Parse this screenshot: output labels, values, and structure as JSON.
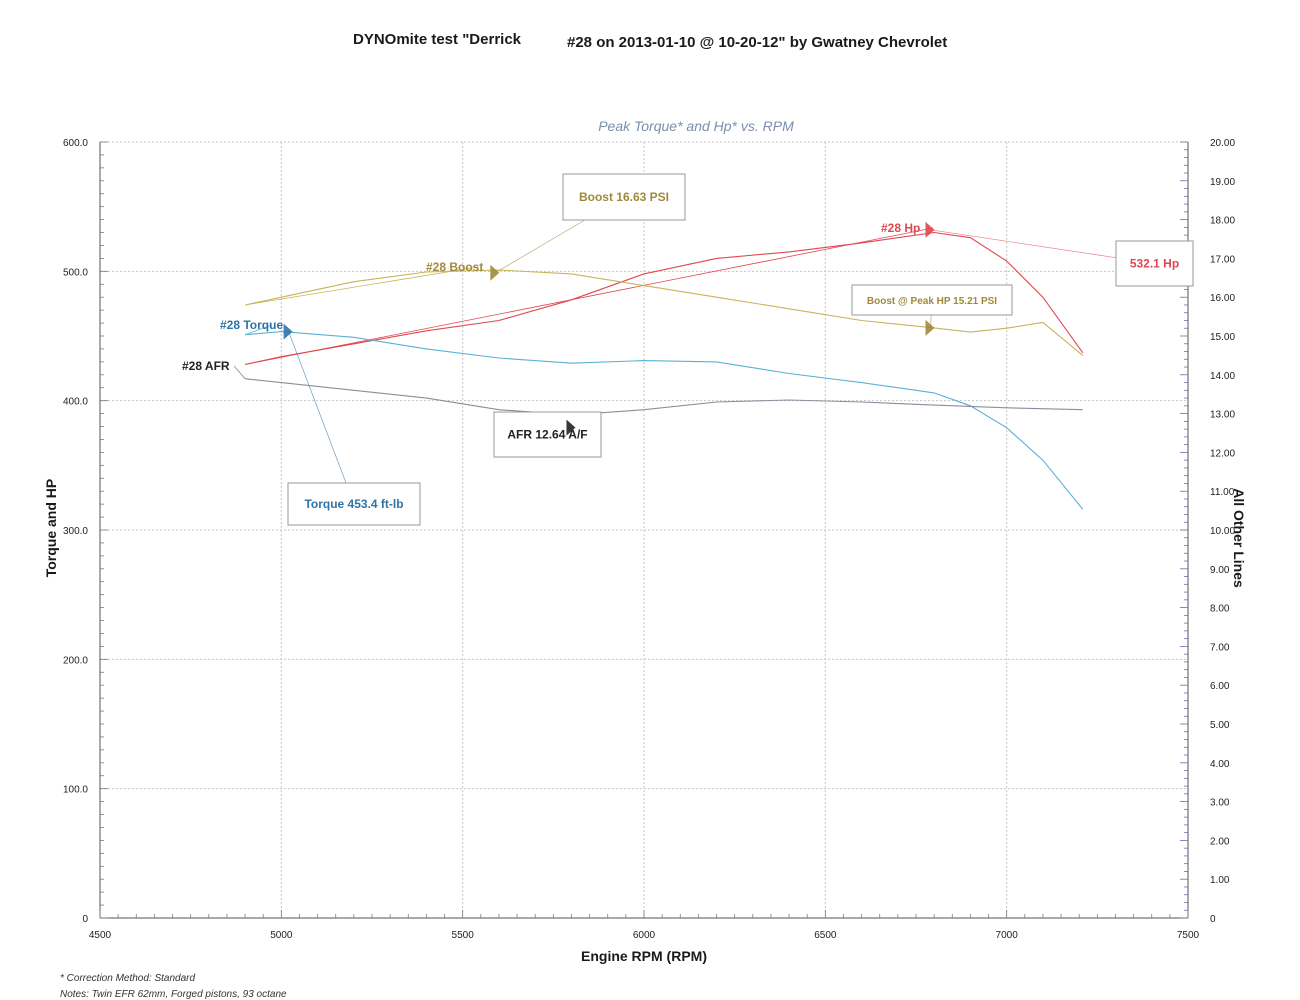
{
  "header": {
    "title_part1": "DYNOmite test \"Derrick",
    "title_part2": "#28 on 2013-01-10 @ 10-20-12\" by Gwatney Chevrolet"
  },
  "footer": {
    "correction": "* Correction Method: Standard",
    "notes": "Notes: Twin EFR 62mm, Forged pistons, 93 octane"
  },
  "chart_data": {
    "type": "line",
    "title": "Peak Torque* and Hp* vs. RPM",
    "xlabel": "Engine RPM (RPM)",
    "ylabel_left": "Torque and HP",
    "ylabel_right": "All Other Lines",
    "xlim": [
      4500,
      7500
    ],
    "ylim_left": [
      0,
      600
    ],
    "ylim_right": [
      0,
      20
    ],
    "x_ticks": [
      {
        "v": 4500,
        "label": "4500"
      },
      {
        "v": 5000,
        "label": "5000"
      },
      {
        "v": 5500,
        "label": "5500"
      },
      {
        "v": 6000,
        "label": "6000"
      },
      {
        "v": 6500,
        "label": "6500"
      },
      {
        "v": 7000,
        "label": "7000"
      },
      {
        "v": 7500,
        "label": "7500"
      }
    ],
    "y_left_ticks": [
      {
        "v": 0,
        "label": "0"
      },
      {
        "v": 100,
        "label": "100.0"
      },
      {
        "v": 200,
        "label": "200.0"
      },
      {
        "v": 300,
        "label": "300.0"
      },
      {
        "v": 400,
        "label": "400.0"
      },
      {
        "v": 500,
        "label": "500.0"
      },
      {
        "v": 600,
        "label": "600.0"
      }
    ],
    "y_right_ticks": [
      {
        "v": 0,
        "label": "0"
      },
      {
        "v": 1,
        "label": "1.00"
      },
      {
        "v": 2,
        "label": "2.00"
      },
      {
        "v": 3,
        "label": "3.00"
      },
      {
        "v": 4,
        "label": "4.00"
      },
      {
        "v": 5,
        "label": "5.00"
      },
      {
        "v": 6,
        "label": "6.00"
      },
      {
        "v": 7,
        "label": "7.00"
      },
      {
        "v": 8,
        "label": "8.00"
      },
      {
        "v": 9,
        "label": "9.00"
      },
      {
        "v": 10,
        "label": "10.00"
      },
      {
        "v": 11,
        "label": "11.00"
      },
      {
        "v": 12,
        "label": "12.00"
      },
      {
        "v": 13,
        "label": "13.00"
      },
      {
        "v": 14,
        "label": "14.00"
      },
      {
        "v": 15,
        "label": "15.00"
      },
      {
        "v": 16,
        "label": "16.00"
      },
      {
        "v": 17,
        "label": "17.00"
      },
      {
        "v": 18,
        "label": "18.00"
      },
      {
        "v": 19,
        "label": "19.00"
      },
      {
        "v": 20,
        "label": "20.00"
      }
    ],
    "grid": true,
    "series": [
      {
        "name": "#28 Hp",
        "axis": "left",
        "color": "#e0474f",
        "x": [
          4900,
          5000,
          5200,
          5400,
          5600,
          5800,
          6000,
          6200,
          6400,
          6600,
          6800,
          6900,
          7000,
          7100,
          7210
        ],
        "y": [
          428,
          434,
          444,
          454,
          462,
          478,
          498,
          510,
          515,
          522,
          530,
          526,
          508,
          480,
          437
        ]
      },
      {
        "name": "#28 Torque",
        "axis": "left",
        "color": "#5ab0d6",
        "x": [
          4900,
          5000,
          5200,
          5400,
          5600,
          5800,
          6000,
          6200,
          6400,
          6600,
          6800,
          6900,
          7000,
          7100,
          7210
        ],
        "y": [
          451,
          453.4,
          449,
          440,
          433,
          429,
          431,
          430,
          421,
          414,
          406,
          396,
          379,
          354,
          316
        ]
      },
      {
        "name": "#28 Boost",
        "axis": "right",
        "color": "#c8b458",
        "x": [
          4900,
          5000,
          5200,
          5400,
          5600,
          5800,
          6000,
          6200,
          6400,
          6600,
          6800,
          6900,
          7000,
          7100,
          7210
        ],
        "y": [
          15.8,
          16.0,
          16.4,
          16.65,
          16.7,
          16.6,
          16.3,
          16.0,
          15.7,
          15.4,
          15.21,
          15.1,
          15.2,
          15.35,
          14.5
        ]
      },
      {
        "name": "#28 AFR",
        "axis": "right",
        "color": "#8c8c9c",
        "x": [
          4900,
          5000,
          5200,
          5400,
          5600,
          5800,
          6000,
          6200,
          6400,
          6600,
          6800,
          7000,
          7210
        ],
        "y": [
          13.9,
          13.8,
          13.6,
          13.4,
          13.1,
          12.97,
          13.1,
          13.3,
          13.35,
          13.3,
          13.22,
          13.15,
          13.1
        ]
      }
    ],
    "annotations": [
      {
        "id": "boost-peak",
        "text": "Boost 16.63 PSI",
        "color": "#a08a3a",
        "series": "#28 Boost",
        "x": 5590,
        "y": 16.63
      },
      {
        "id": "boost-at-peak-hp",
        "text": "Boost @ Peak HP 15.21 PSI",
        "color": "#a08a3a",
        "series": "#28 Boost",
        "x": 6790,
        "y": 15.21
      },
      {
        "id": "hp-peak",
        "text": "532.1 Hp",
        "color": "#e0474f",
        "series": "#28 Hp",
        "x": 6790,
        "y": 532.1
      },
      {
        "id": "torque-peak",
        "text": "Torque 453.4 ft-lb",
        "color": "#2f74a8",
        "series": "#28 Torque",
        "x": 5020,
        "y": 453.4
      },
      {
        "id": "afr-value",
        "text": "AFR 12.64 A/F",
        "color": "#222222",
        "series": "#28 AFR",
        "x": 5800,
        "y": 12.64
      }
    ]
  }
}
